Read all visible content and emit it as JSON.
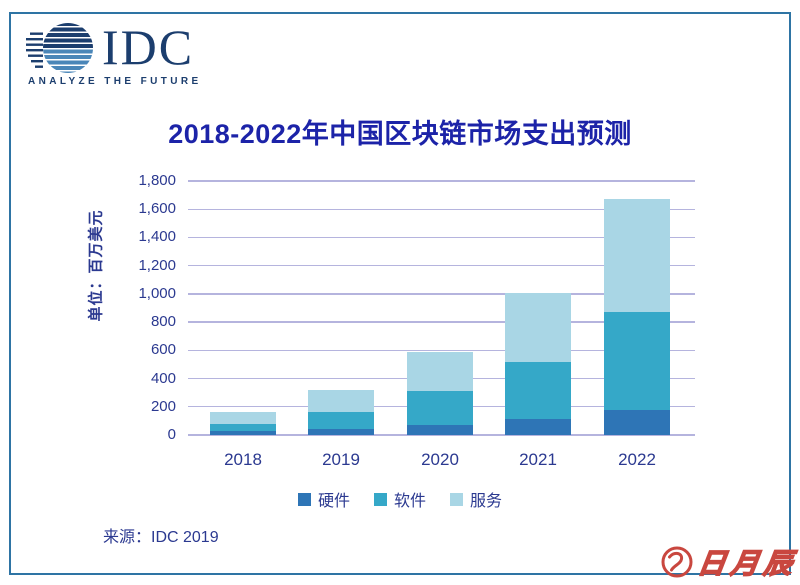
{
  "logo": {
    "name": "IDC",
    "tagline": "ANALYZE THE FUTURE"
  },
  "title": "2018-2022年中国区块链市场支出预测",
  "y_axis": {
    "unit_label": "单位：百万美元",
    "ticks": [
      "0",
      "200",
      "400",
      "600",
      "800",
      "1,000",
      "1,200",
      "1,400",
      "1,600",
      "1,800"
    ]
  },
  "chart_data": {
    "type": "bar",
    "stacked": true,
    "title": "2018-2022年中国区块链市场支出预测",
    "ylabel": "单位：百万美元",
    "xlabel": "",
    "categories": [
      "2018",
      "2019",
      "2020",
      "2021",
      "2022"
    ],
    "series": [
      {
        "name": "硬件",
        "color_key": "hardware",
        "values": [
          25,
          40,
          70,
          110,
          175
        ]
      },
      {
        "name": "软件",
        "color_key": "software",
        "values": [
          55,
          125,
          240,
          410,
          695
        ]
      },
      {
        "name": "服务",
        "color_key": "services",
        "values": [
          80,
          155,
          280,
          485,
          800
        ]
      }
    ],
    "totals": [
      160,
      320,
      590,
      1005,
      1670
    ],
    "ylim": [
      0,
      1800
    ],
    "ytick_step": 200,
    "grid": true,
    "legend_position": "bottom"
  },
  "legend": {
    "items": [
      {
        "label": "硬件",
        "color_key": "hardware"
      },
      {
        "label": "软件",
        "color_key": "software"
      },
      {
        "label": "服务",
        "color_key": "services"
      }
    ]
  },
  "source": "来源：IDC 2019",
  "watermark": {
    "text": "日月辰"
  },
  "colors": {
    "border": "#2e74a4",
    "title_text": "#1c23a8",
    "axis_text": "#2b3990",
    "gridline": "#b5b4de",
    "hardware": "#2e75b6",
    "software": "#35a8c8",
    "services": "#a9d6e5",
    "logo_navy": "#1c3e6e",
    "logo_globe_light": "#4a86b8",
    "watermark": "#c9473f"
  }
}
